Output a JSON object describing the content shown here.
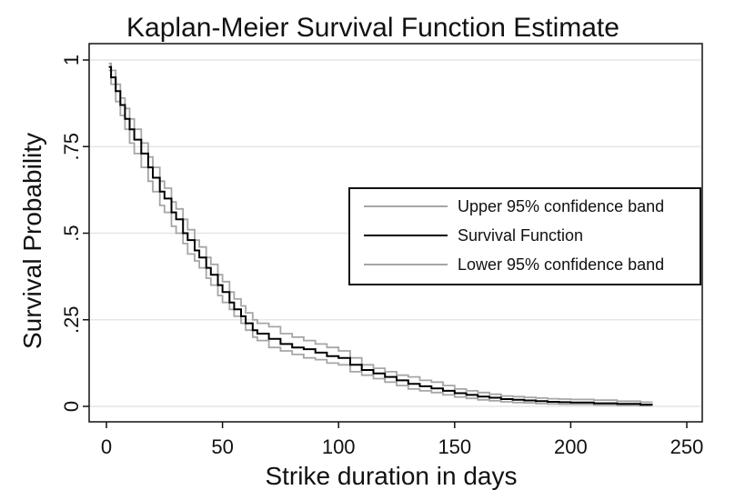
{
  "chart_data": {
    "type": "line",
    "title": "Kaplan-Meier Survival Function Estimate",
    "xlabel": "Strike duration in days",
    "ylabel": "Survival Probability",
    "xlim": [
      0,
      250
    ],
    "ylim": [
      0,
      1
    ],
    "xticks": [
      0,
      50,
      100,
      150,
      200,
      250
    ],
    "xtick_labels": [
      "0",
      "50",
      "100",
      "150",
      "200",
      "250"
    ],
    "yticks": [
      0,
      0.25,
      0.5,
      0.75,
      1
    ],
    "ytick_labels": [
      "0",
      ".25",
      ".5",
      ".75",
      "1"
    ],
    "grid": "horizontal",
    "legend_position": "right",
    "series": [
      {
        "name": "Upper 95% confidence band",
        "color": "#a6a6a6",
        "x": [
          1,
          2,
          4,
          6,
          8,
          10,
          12,
          15,
          18,
          20,
          23,
          25,
          28,
          30,
          33,
          35,
          38,
          40,
          43,
          45,
          48,
          50,
          53,
          55,
          58,
          60,
          63,
          65,
          70,
          75,
          80,
          85,
          90,
          95,
          100,
          105,
          110,
          115,
          120,
          125,
          130,
          135,
          140,
          145,
          150,
          155,
          160,
          165,
          170,
          175,
          180,
          185,
          190,
          195,
          200,
          210,
          220,
          230,
          235
        ],
        "y": [
          0.99,
          0.97,
          0.93,
          0.89,
          0.86,
          0.83,
          0.8,
          0.76,
          0.72,
          0.69,
          0.65,
          0.63,
          0.59,
          0.57,
          0.54,
          0.51,
          0.48,
          0.46,
          0.43,
          0.41,
          0.38,
          0.36,
          0.33,
          0.31,
          0.29,
          0.27,
          0.25,
          0.24,
          0.23,
          0.21,
          0.2,
          0.19,
          0.18,
          0.17,
          0.16,
          0.14,
          0.12,
          0.11,
          0.1,
          0.09,
          0.085,
          0.075,
          0.07,
          0.06,
          0.05,
          0.045,
          0.04,
          0.035,
          0.03,
          0.028,
          0.026,
          0.024,
          0.022,
          0.021,
          0.02,
          0.018,
          0.015,
          0.012,
          0.011
        ]
      },
      {
        "name": "Survival Function",
        "color": "#000000",
        "x": [
          1,
          2,
          4,
          6,
          8,
          10,
          12,
          15,
          18,
          20,
          23,
          25,
          28,
          30,
          33,
          35,
          38,
          40,
          43,
          45,
          48,
          50,
          53,
          55,
          58,
          60,
          63,
          65,
          70,
          75,
          80,
          85,
          90,
          95,
          100,
          105,
          110,
          115,
          120,
          125,
          130,
          135,
          140,
          145,
          150,
          155,
          160,
          165,
          170,
          175,
          180,
          185,
          190,
          195,
          200,
          210,
          220,
          230,
          235
        ],
        "y": [
          0.98,
          0.95,
          0.91,
          0.87,
          0.83,
          0.8,
          0.77,
          0.73,
          0.69,
          0.66,
          0.62,
          0.6,
          0.56,
          0.54,
          0.5,
          0.48,
          0.45,
          0.43,
          0.4,
          0.38,
          0.35,
          0.33,
          0.3,
          0.28,
          0.26,
          0.24,
          0.22,
          0.21,
          0.195,
          0.18,
          0.17,
          0.165,
          0.155,
          0.145,
          0.14,
          0.12,
          0.105,
          0.095,
          0.085,
          0.075,
          0.065,
          0.058,
          0.052,
          0.045,
          0.038,
          0.033,
          0.028,
          0.025,
          0.021,
          0.019,
          0.017,
          0.015,
          0.013,
          0.012,
          0.011,
          0.009,
          0.007,
          0.005,
          0.004
        ]
      },
      {
        "name": "Lower 95% confidence band",
        "color": "#a6a6a6",
        "x": [
          1,
          2,
          4,
          6,
          8,
          10,
          12,
          15,
          18,
          20,
          23,
          25,
          28,
          30,
          33,
          35,
          38,
          40,
          43,
          45,
          48,
          50,
          53,
          55,
          58,
          60,
          63,
          65,
          70,
          75,
          80,
          85,
          90,
          95,
          100,
          105,
          110,
          115,
          120,
          125,
          130,
          135,
          140,
          145,
          150,
          155,
          160,
          165,
          170,
          175,
          180,
          185,
          190,
          195,
          200,
          210,
          220,
          230,
          235
        ],
        "y": [
          0.97,
          0.93,
          0.88,
          0.84,
          0.8,
          0.76,
          0.73,
          0.69,
          0.65,
          0.62,
          0.58,
          0.56,
          0.52,
          0.5,
          0.47,
          0.44,
          0.42,
          0.4,
          0.37,
          0.35,
          0.32,
          0.3,
          0.28,
          0.26,
          0.24,
          0.22,
          0.2,
          0.19,
          0.17,
          0.16,
          0.15,
          0.14,
          0.135,
          0.125,
          0.12,
          0.1,
          0.09,
          0.08,
          0.07,
          0.06,
          0.05,
          0.045,
          0.04,
          0.033,
          0.027,
          0.023,
          0.019,
          0.016,
          0.013,
          0.011,
          0.01,
          0.008,
          0.007,
          0.006,
          0.006,
          0.004,
          0.003,
          0.002,
          0.001
        ]
      }
    ]
  }
}
